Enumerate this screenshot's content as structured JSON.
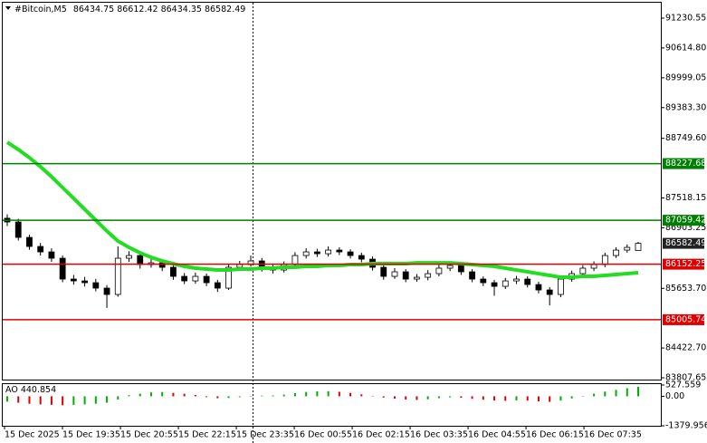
{
  "chart_data": {
    "type": "candlestick",
    "series": [
      {
        "name": "#Bitcoin,M5",
        "open": [
          87100,
          87023,
          86705,
          86518,
          86406,
          86275,
          85845,
          85807,
          85770,
          85658,
          85527,
          86275,
          86331,
          86144,
          86181,
          86088,
          85901,
          85807,
          85901,
          85770,
          85658,
          86088,
          86144,
          86219,
          86070,
          86032,
          86144,
          86331,
          86406,
          86368,
          86443,
          86406,
          86331,
          86256,
          86088,
          85901,
          85995,
          85845,
          85882,
          85957,
          86070,
          86125,
          85995,
          85845,
          85770,
          85695,
          85807,
          85845,
          85732,
          85620,
          85527,
          85845,
          85957,
          86070,
          86144,
          86331,
          86443,
          86434.75
        ],
        "high": [
          87180,
          87090,
          86760,
          86590,
          86480,
          86330,
          85930,
          85890,
          85850,
          85720,
          86520,
          86420,
          86390,
          86260,
          86240,
          86150,
          85970,
          85980,
          85960,
          85830,
          86150,
          86220,
          86330,
          86280,
          86140,
          86210,
          86400,
          86480,
          86470,
          86520,
          86500,
          86460,
          86390,
          86310,
          86130,
          86070,
          86050,
          85950,
          86030,
          86140,
          86200,
          86180,
          86050,
          85900,
          85830,
          85870,
          85910,
          85900,
          85790,
          85680,
          85900,
          86020,
          86130,
          86210,
          86390,
          86500,
          86560,
          86612.42
        ],
        "low": [
          86940,
          86640,
          86450,
          86330,
          86200,
          85780,
          85730,
          85690,
          85590,
          85250,
          85480,
          86200,
          86060,
          86080,
          86010,
          85830,
          85740,
          85750,
          85700,
          85580,
          85620,
          86040,
          86100,
          86000,
          85960,
          85980,
          86090,
          86270,
          86300,
          86310,
          86340,
          86270,
          86190,
          86020,
          85830,
          85850,
          85780,
          85790,
          85820,
          85900,
          86010,
          85930,
          85780,
          85700,
          85500,
          85640,
          85740,
          85670,
          85550,
          85300,
          85470,
          85790,
          85900,
          86010,
          86090,
          86280,
          86390,
          86434.35
        ],
        "close": [
          87023,
          86705,
          86518,
          86406,
          86275,
          85845,
          85807,
          85770,
          85658,
          85527,
          86275,
          86331,
          86144,
          86181,
          86088,
          85901,
          85807,
          85901,
          85770,
          85658,
          86088,
          86144,
          86219,
          86070,
          86032,
          86144,
          86331,
          86406,
          86368,
          86443,
          86406,
          86331,
          86256,
          86088,
          85901,
          85995,
          85845,
          85882,
          85957,
          86070,
          86125,
          85995,
          85845,
          85770,
          85695,
          85807,
          85845,
          85732,
          85620,
          85527,
          85845,
          85957,
          86070,
          86144,
          86331,
          86443,
          86499,
          86582.49
        ]
      }
    ],
    "ma": {
      "color": "#22dd22",
      "values": [
        88668,
        88519,
        88351,
        88164,
        87958,
        87734,
        87510,
        87285,
        87060,
        86836,
        86630,
        86499,
        86387,
        86293,
        86219,
        86163,
        86107,
        86070,
        86051,
        86032,
        86032,
        86051,
        86051,
        86070,
        86070,
        86088,
        86088,
        86107,
        86107,
        86125,
        86125,
        86144,
        86144,
        86163,
        86163,
        86163,
        86163,
        86181,
        86181,
        86181,
        86181,
        86163,
        86144,
        86125,
        86107,
        86070,
        86032,
        85995,
        85957,
        85920,
        85882,
        85882,
        85901,
        85901,
        85920,
        85939,
        85957,
        85976
      ]
    },
    "levels": [
      {
        "value": 88227.68,
        "color": "#008000"
      },
      {
        "value": 87059.42,
        "color": "#008000"
      },
      {
        "value": 86152.25,
        "color": "#e00000"
      },
      {
        "value": 85005.74,
        "color": "#e00000"
      }
    ],
    "ylim": [
      83751.6,
      91604.5
    ],
    "yticks": [
      91230.55,
      {
        "value": 90614.8,
        "label": "90614.80"
      },
      89999.05,
      {
        "value": 89383.3,
        "label": "89383.30"
      },
      {
        "value": 88749.6,
        "label": "88749.60"
      },
      87518.15,
      86903.25,
      {
        "value": 85653.7,
        "label": "85653.70"
      },
      {
        "value": 84422.7,
        "label": "84422.70"
      },
      83807.65
    ],
    "ao": {
      "name": "AO",
      "current": 440.854,
      "up_color": "#00b000",
      "down_color": "#e00000",
      "values": [
        -250,
        -300,
        -350,
        -380,
        -400,
        -420,
        -400,
        -380,
        -350,
        -300,
        -150,
        50,
        120,
        180,
        200,
        160,
        120,
        60,
        -40,
        -90,
        -80,
        -40,
        20,
        30,
        40,
        80,
        150,
        200,
        230,
        240,
        210,
        160,
        90,
        20,
        -60,
        -110,
        -150,
        -170,
        -140,
        -90,
        -50,
        -70,
        -120,
        -160,
        -200,
        -210,
        -190,
        -200,
        -240,
        -260,
        -200,
        -100,
        20,
        120,
        220,
        300,
        380,
        440.854
      ],
      "ylim": [
        -1379.956,
        527.559
      ],
      "yticks": [
        527.559,
        {
          "value": 0,
          "label": "0.00"
        },
        -1379.956
      ]
    },
    "x_labels": [
      "15 Dec 2025",
      "15 Dec 19:35",
      "15 Dec 20:55",
      "15 Dec 22:15",
      "15 Dec 23:35",
      "16 Dec 00:55",
      "16 Dec 02:15",
      "16 Dec 03:35",
      "16 Dec 04:55",
      "16 Dec 06:15",
      "16 Dec 07:35"
    ]
  }
}
